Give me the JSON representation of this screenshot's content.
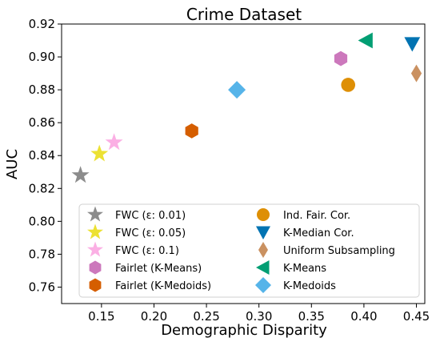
{
  "chart_data": {
    "type": "scatter",
    "title": "Crime Dataset",
    "xlabel": "Demographic Disparity",
    "ylabel": "AUC",
    "xlim": [
      0.112,
      0.458
    ],
    "ylim": [
      0.75,
      0.92
    ],
    "xticks": [
      "0.15",
      "0.20",
      "0.25",
      "0.30",
      "0.35",
      "0.40",
      "0.45"
    ],
    "yticks": [
      "0.76",
      "0.78",
      "0.80",
      "0.82",
      "0.84",
      "0.86",
      "0.88",
      "0.90",
      "0.92"
    ],
    "grid": false,
    "legend_position": "lower-center",
    "series": [
      {
        "name": "FWC (ε: 0.01)",
        "marker": "star",
        "color": "#8c8c8c",
        "x": 0.13,
        "y": 0.828
      },
      {
        "name": "FWC (ε: 0.05)",
        "marker": "star",
        "color": "#ece133",
        "x": 0.148,
        "y": 0.841
      },
      {
        "name": "FWC (ε: 0.1)",
        "marker": "star",
        "color": "#fbafe4",
        "x": 0.162,
        "y": 0.848
      },
      {
        "name": "Fairlet (K-Means)",
        "marker": "hexagon",
        "color": "#cc78bc",
        "x": 0.378,
        "y": 0.899
      },
      {
        "name": "Fairlet (K-Medoids)",
        "marker": "hexagon",
        "color": "#d55e00",
        "x": 0.236,
        "y": 0.855
      },
      {
        "name": "Ind. Fair. Cor.",
        "marker": "circle",
        "color": "#de8f05",
        "x": 0.385,
        "y": 0.883
      },
      {
        "name": "K-Median Cor.",
        "marker": "triangle-down",
        "color": "#0173b2",
        "x": 0.446,
        "y": 0.908
      },
      {
        "name": "Uniform Subsampling",
        "marker": "thin-diamond",
        "color": "#ca9161",
        "x": 0.45,
        "y": 0.89
      },
      {
        "name": "K-Means",
        "marker": "triangle-left",
        "color": "#029e73",
        "x": 0.402,
        "y": 0.91
      },
      {
        "name": "K-Medoids",
        "marker": "diamond",
        "color": "#56b4e9",
        "x": 0.279,
        "y": 0.88
      }
    ]
  }
}
